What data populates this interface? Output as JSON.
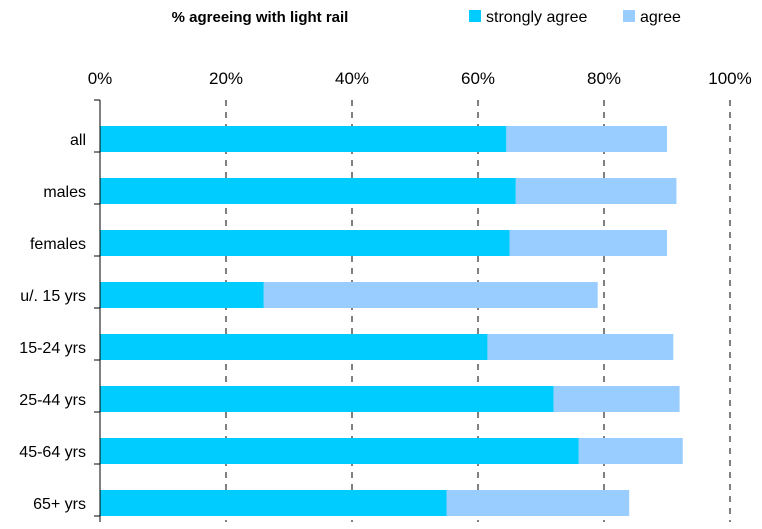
{
  "chart_data": {
    "type": "bar",
    "orientation": "horizontal",
    "stacked": true,
    "title": "% agreeing with light rail",
    "categories": [
      "all",
      "males",
      "females",
      "u/. 15 yrs",
      "15-24 yrs",
      "25-44 yrs",
      "45-64 yrs",
      "65+ yrs"
    ],
    "series": [
      {
        "name": "strongly agree",
        "color": "#00CCFF",
        "values": [
          64.5,
          66,
          65,
          26,
          61.5,
          72,
          76,
          55
        ]
      },
      {
        "name": "agree",
        "color": "#99CCFF",
        "values": [
          25.5,
          25.5,
          25,
          53,
          29.5,
          20,
          16.5,
          29
        ]
      }
    ],
    "xlim": [
      0,
      100
    ],
    "x_ticks": [
      "0%",
      "20%",
      "40%",
      "60%",
      "80%",
      "100%"
    ],
    "grid": "vertical dashed",
    "legend_position": "top-right",
    "xlabel": "",
    "ylabel": ""
  }
}
